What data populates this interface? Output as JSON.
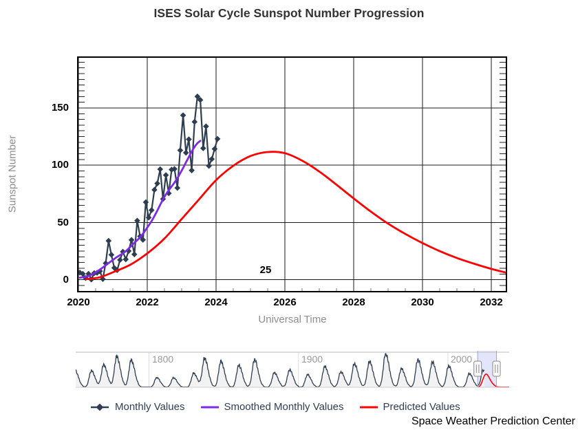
{
  "title": "ISES Solar Cycle Sunspot Number Progression",
  "credit": "Space Weather Prediction Center",
  "axes": {
    "x_label": "Universal Time",
    "y_label": "Sunspot Number",
    "x_ticks": [
      "2020",
      "2022",
      "2024",
      "2026",
      "2028",
      "2030",
      "2032"
    ],
    "y_ticks": [
      "0",
      "50",
      "100",
      "150"
    ]
  },
  "annotation_cycle": "25",
  "legend": {
    "items": [
      {
        "label": "Monthly Values",
        "color": "#2E3D50",
        "marker": "diamond-line"
      },
      {
        "label": "Smoothed Monthly Values",
        "color": "#7D2AE8",
        "marker": "line"
      },
      {
        "label": "Predicted Values",
        "color": "#FF0000",
        "marker": "line"
      }
    ]
  },
  "navigator": {
    "year_labels": [
      "1800",
      "1900",
      "2000"
    ],
    "selection": {
      "start_year": 2019.9,
      "end_year": 2032.5
    },
    "line_color": "#2E3D50",
    "fill_color": "#f2f2f2",
    "selection_fill": "rgba(115,125,235,0.20)",
    "selection_border": "#9aa3d6",
    "grid_color": "#dddddd"
  },
  "chart_data": [
    {
      "type": "line",
      "title": "ISES Solar Cycle Sunspot Number Progression",
      "xlabel": "Universal Time",
      "ylabel": "Sunspot Number",
      "xlim": [
        2019.96,
        2032.46
      ],
      "ylim": [
        -11,
        195
      ],
      "x_major_ticks": [
        2020,
        2022,
        2024,
        2026,
        2028,
        2030,
        2032
      ],
      "y_major_ticks": [
        0,
        50,
        100,
        150
      ],
      "y_minor_step": 5,
      "x_minor_step": 0.5,
      "grid": true,
      "annotations": [
        {
          "text": "25",
          "x": 2025.42,
          "y": 8
        }
      ],
      "series": [
        {
          "name": "Monthly Values",
          "color": "#2E3D50",
          "marker": "diamond",
          "x_start": 2020.042,
          "x_step": 0.08333,
          "values": [
            6.2,
            5.2,
            1.5,
            5.2,
            0.2,
            5.8,
            6.1,
            7.5,
            0.6,
            14.4,
            34,
            21.8,
            10.4,
            8.4,
            17.3,
            24.5,
            17.8,
            25.1,
            34.8,
            22.2,
            51.6,
            37.9,
            34.9,
            67.7,
            54.3,
            60.8,
            78.5,
            84.1,
            96.5,
            70.5,
            91.4,
            75.5,
            96.1,
            96.7,
            80.2,
            113,
            143.6,
            110.9,
            122.6,
            95.5,
            137.9,
            160,
            157,
            114.8,
            133.9,
            99.4,
            105.4,
            114.2,
            123
          ]
        },
        {
          "name": "Smoothed Monthly Values",
          "color": "#7D2AE8",
          "x_start": 2020.042,
          "x_step": 0.08333,
          "values": [
            1.8,
            2.2,
            2.6,
            3.2,
            4.3,
            5.7,
            7.3,
            8.9,
            10.7,
            12.6,
            14.5,
            16.3,
            18.2,
            20,
            21.5,
            23.1,
            24.9,
            27.3,
            29.7,
            32.4,
            34.6,
            37,
            40.2,
            43.8,
            47.4,
            51.2,
            55.6,
            60.4,
            65.4,
            70.2,
            74.5,
            78.1,
            81.5,
            84.9,
            88.6,
            93,
            97.6,
            102.5,
            107.2,
            111.9,
            116,
            119.2,
            121.3
          ]
        },
        {
          "name": "Predicted Values",
          "color": "#FF0000",
          "x": [
            2020.2,
            2020.6,
            2021,
            2021.5,
            2022,
            2022.5,
            2023,
            2023.5,
            2024,
            2024.5,
            2025,
            2025.5,
            2026,
            2026.5,
            2027,
            2027.5,
            2028,
            2028.5,
            2029,
            2029.5,
            2030,
            2030.5,
            2031,
            2031.5,
            2032,
            2032.46
          ],
          "y": [
            0.5,
            2,
            6.5,
            13,
            23,
            36,
            53,
            70,
            87,
            99.5,
            108,
            111.5,
            110.5,
            104,
            94.5,
            83,
            71,
            59.5,
            49,
            40,
            32,
            25,
            19,
            14,
            9.5,
            6
          ]
        }
      ]
    },
    {
      "type": "area",
      "name": "historical-sunspot-navigator",
      "xlim": [
        1751,
        2041
      ],
      "gridline_years": [
        1800,
        1900,
        2000
      ],
      "history_end_year": 2024.25,
      "cycles_columns": [
        "peak_year",
        "amplitude"
      ],
      "cycles": [
        [
          1750.3,
          150
        ],
        [
          1761.5,
          140
        ],
        [
          1769.7,
          190
        ],
        [
          1778.4,
          260
        ],
        [
          1788.1,
          230
        ],
        [
          1805.2,
          82
        ],
        [
          1816.4,
          81
        ],
        [
          1829.9,
          119
        ],
        [
          1837.2,
          245
        ],
        [
          1848.1,
          220
        ],
        [
          1860.1,
          186
        ],
        [
          1870.6,
          234
        ],
        [
          1883.9,
          124
        ],
        [
          1894.1,
          147
        ],
        [
          1906.1,
          107
        ],
        [
          1917.6,
          176
        ],
        [
          1928.4,
          130
        ],
        [
          1937.4,
          199
        ],
        [
          1947.5,
          219
        ],
        [
          1958.3,
          285
        ],
        [
          1968.9,
          157
        ],
        [
          1979.9,
          233
        ],
        [
          1989.6,
          213
        ],
        [
          2000.5,
          180
        ],
        [
          2014.3,
          116
        ],
        [
          2023.7,
          145
        ]
      ],
      "predicted_tail": [
        [
          2034,
          2
        ],
        [
          2041,
          1.5
        ]
      ]
    }
  ]
}
